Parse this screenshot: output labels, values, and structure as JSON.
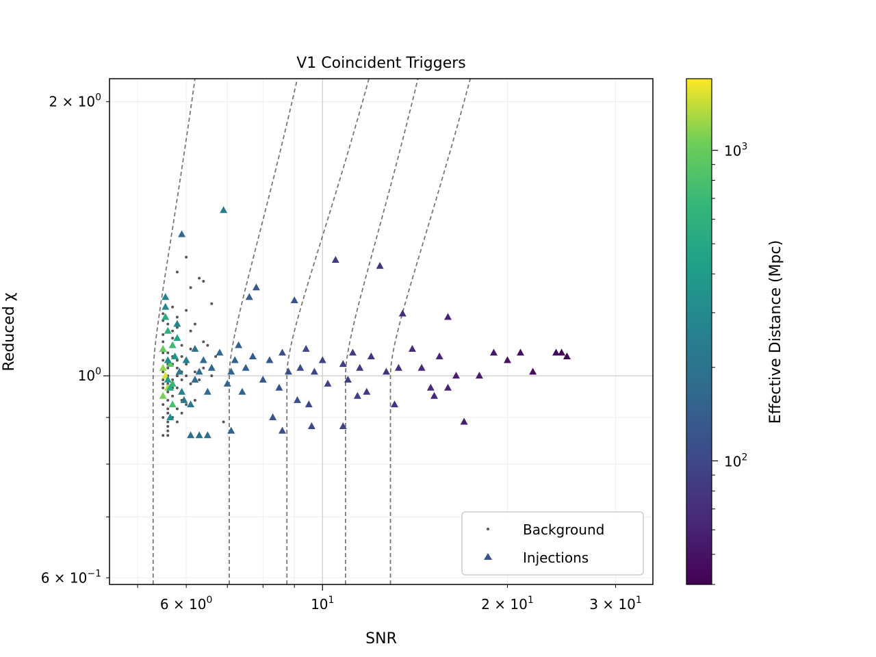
{
  "chart_data": {
    "type": "scatter",
    "title": "V1 Coincident Triggers",
    "xlabel": "SNR",
    "ylabel": "Reduced χ",
    "xscale": "log",
    "yscale": "log",
    "xlim": [
      4.5,
      34.5
    ],
    "ylim": [
      0.59,
      2.12
    ],
    "grid": true,
    "legend_position": "lower-right",
    "x_ticks": [
      {
        "value": 6,
        "label": "6 × 10^0"
      },
      {
        "value": 10,
        "label": "10^1"
      },
      {
        "value": 20,
        "label": "2 × 10^1"
      },
      {
        "value": 30,
        "label": "3 × 10^1"
      }
    ],
    "y_ticks": [
      {
        "value": 0.6,
        "label": "6 × 10^−1"
      },
      {
        "value": 1.0,
        "label": "10^0"
      },
      {
        "value": 2.0,
        "label": "2 × 10^0"
      }
    ],
    "colorbar": {
      "label": "Effective Distance (Mpc)",
      "scale": "log",
      "min": 40,
      "max": 1700,
      "colormap": "viridis",
      "ticks": [
        {
          "value": 100,
          "label": "10^2"
        },
        {
          "value": 1000,
          "label": "10^3"
        }
      ]
    },
    "contour_lines": {
      "style": "dashed",
      "color": "#777777",
      "vertical_snr": [
        5.3,
        7.05,
        8.75,
        10.9,
        12.9
      ],
      "top_snr": [
        6.2,
        9.1,
        11.9,
        14.3,
        17.4
      ]
    },
    "series": [
      {
        "name": "Background",
        "marker": "dot",
        "color": "#555555",
        "points": [
          [
            5.5,
            0.98
          ],
          [
            5.6,
            1.02
          ],
          [
            5.5,
            1.07
          ],
          [
            5.7,
            0.95
          ],
          [
            5.6,
            0.91
          ],
          [
            5.8,
            1.0
          ],
          [
            5.5,
            0.93
          ],
          [
            5.9,
            1.05
          ],
          [
            5.6,
            1.12
          ],
          [
            5.7,
            1.08
          ],
          [
            5.5,
            1.15
          ],
          [
            5.8,
            0.97
          ],
          [
            5.6,
            0.88
          ],
          [
            5.9,
            0.99
          ],
          [
            6.0,
            1.03
          ],
          [
            5.5,
            1.01
          ],
          [
            5.7,
            1.1
          ],
          [
            5.6,
            0.96
          ],
          [
            5.8,
            0.92
          ],
          [
            5.5,
            0.9
          ],
          [
            6.1,
            0.98
          ],
          [
            5.7,
            1.03
          ],
          [
            5.6,
            1.06
          ],
          [
            5.9,
            0.94
          ],
          [
            5.5,
            0.97
          ],
          [
            5.8,
            1.13
          ],
          [
            5.6,
            1.0
          ],
          [
            6.2,
            1.01
          ],
          [
            5.7,
            0.9
          ],
          [
            5.5,
            1.09
          ],
          [
            5.6,
            0.87
          ],
          [
            5.8,
            1.04
          ],
          [
            5.9,
            0.96
          ],
          [
            6.0,
            0.93
          ],
          [
            5.5,
            1.04
          ],
          [
            5.7,
            0.99
          ],
          [
            5.6,
            1.14
          ],
          [
            5.8,
            1.02
          ],
          [
            6.1,
            1.07
          ],
          [
            5.5,
            0.95
          ],
          [
            5.6,
            0.94
          ],
          [
            5.7,
            1.12
          ],
          [
            5.8,
            0.89
          ],
          [
            6.3,
            0.99
          ],
          [
            5.5,
            1.11
          ],
          [
            5.9,
            1.08
          ],
          [
            5.6,
            0.98
          ],
          [
            5.7,
            0.97
          ],
          [
            6.0,
            1.0
          ],
          [
            5.5,
            0.99
          ],
          [
            6.4,
            1.02
          ],
          [
            6.5,
            0.96
          ],
          [
            5.6,
            1.03
          ],
          [
            5.8,
            1.0
          ],
          [
            5.7,
            1.05
          ],
          [
            6.2,
            0.94
          ],
          [
            5.5,
            1.06
          ],
          [
            5.9,
            1.01
          ],
          [
            6.6,
            1.0
          ],
          [
            5.6,
            0.92
          ],
          [
            6.1,
            1.25
          ],
          [
            6.0,
            1.18
          ],
          [
            6.0,
            1.35
          ],
          [
            6.3,
            1.28
          ],
          [
            6.4,
            1.27
          ],
          [
            6.6,
            1.2
          ],
          [
            5.8,
            1.3
          ],
          [
            6.9,
            0.89
          ],
          [
            6.4,
            1.09
          ],
          [
            5.5,
            0.86
          ],
          [
            5.6,
            0.86
          ],
          [
            5.6,
            0.89
          ],
          [
            5.7,
            1.19
          ],
          [
            5.5,
            1.17
          ],
          [
            5.8,
            1.16
          ],
          [
            6.1,
            1.12
          ],
          [
            6.5,
            1.08
          ],
          [
            6.7,
            1.05
          ],
          [
            6.2,
            1.14
          ],
          [
            5.9,
            0.91
          ]
        ]
      },
      {
        "name": "Injections",
        "marker": "triangle",
        "points": [
          [
            5.55,
            1.0,
            1500
          ],
          [
            5.6,
            0.97,
            1300
          ],
          [
            5.5,
            0.95,
            1100
          ],
          [
            5.65,
            1.03,
            900
          ],
          [
            5.7,
            1.08,
            700
          ],
          [
            5.6,
            1.12,
            600
          ],
          [
            5.55,
            1.16,
            500
          ],
          [
            5.8,
            1.1,
            450
          ],
          [
            5.5,
            1.02,
            1200
          ],
          [
            5.7,
            0.93,
            800
          ],
          [
            5.6,
            0.99,
            400
          ],
          [
            5.75,
            1.05,
            350
          ],
          [
            5.65,
            0.9,
            300
          ],
          [
            5.9,
            0.96,
            250
          ],
          [
            5.55,
            1.19,
            300
          ],
          [
            5.8,
            1.14,
            280
          ],
          [
            5.5,
            1.07,
            1000
          ],
          [
            5.7,
            0.98,
            650
          ],
          [
            5.6,
            1.04,
            320
          ],
          [
            5.85,
            1.01,
            220
          ],
          [
            5.95,
            0.94,
            200
          ],
          [
            5.55,
            1.22,
            260
          ],
          [
            6.0,
            1.04,
            240
          ],
          [
            5.65,
            0.97,
            550
          ],
          [
            6.1,
            0.93,
            210
          ],
          [
            6.2,
            0.99,
            190
          ],
          [
            6.3,
            1.01,
            180
          ],
          [
            6.4,
            1.04,
            175
          ],
          [
            6.2,
            1.07,
            200
          ],
          [
            6.5,
            0.96,
            170
          ],
          [
            6.6,
            1.02,
            165
          ],
          [
            6.3,
            0.86,
            190
          ],
          [
            6.1,
            0.86,
            185
          ],
          [
            6.5,
            0.86,
            180
          ],
          [
            6.9,
            1.52,
            220
          ],
          [
            5.9,
            1.43,
            160
          ],
          [
            6.8,
            1.06,
            170
          ],
          [
            7.0,
            0.98,
            160
          ],
          [
            7.1,
            1.01,
            155
          ],
          [
            7.2,
            1.04,
            150
          ],
          [
            7.3,
            1.08,
            145
          ],
          [
            7.4,
            0.96,
            150
          ],
          [
            7.5,
            1.02,
            140
          ],
          [
            7.7,
            1.05,
            135
          ],
          [
            7.8,
            1.25,
            130
          ],
          [
            7.6,
            1.22,
            140
          ],
          [
            8.0,
            0.99,
            130
          ],
          [
            8.2,
            1.04,
            125
          ],
          [
            8.3,
            0.9,
            120
          ],
          [
            8.5,
            0.97,
            115
          ],
          [
            8.6,
            1.06,
            110
          ],
          [
            8.8,
            1.01,
            110
          ],
          [
            9.0,
            1.21,
            120
          ],
          [
            9.1,
            0.94,
            115
          ],
          [
            9.2,
            1.02,
            105
          ],
          [
            9.4,
            1.07,
            100
          ],
          [
            9.5,
            0.93,
            98
          ],
          [
            9.7,
            1.01,
            95
          ],
          [
            10.0,
            1.04,
            92
          ],
          [
            10.2,
            0.98,
            90
          ],
          [
            10.5,
            1.34,
            85
          ],
          [
            10.8,
            1.03,
            88
          ],
          [
            11.0,
            0.99,
            86
          ],
          [
            11.2,
            1.06,
            84
          ],
          [
            11.5,
            1.02,
            82
          ],
          [
            11.8,
            0.96,
            80
          ],
          [
            12.0,
            1.05,
            78
          ],
          [
            12.4,
            1.32,
            76
          ],
          [
            12.7,
            1.01,
            75
          ],
          [
            13.1,
            0.93,
            73
          ],
          [
            13.5,
            1.17,
            70
          ],
          [
            14.0,
            1.07,
            68
          ],
          [
            14.5,
            1.02,
            66
          ],
          [
            15.0,
            0.97,
            64
          ],
          [
            15.5,
            1.05,
            62
          ],
          [
            16.0,
            1.16,
            60
          ],
          [
            16.5,
            1.0,
            58
          ],
          [
            17.0,
            0.89,
            56
          ],
          [
            18.0,
            1.0,
            54
          ],
          [
            19.0,
            1.06,
            52
          ],
          [
            20.0,
            1.04,
            50
          ],
          [
            21.0,
            1.06,
            48
          ],
          [
            22.0,
            1.01,
            47
          ],
          [
            24.0,
            1.06,
            45
          ],
          [
            25.0,
            1.05,
            43
          ],
          [
            24.5,
            1.06,
            42
          ],
          [
            7.1,
            0.87,
            150
          ],
          [
            8.6,
            0.87,
            110
          ],
          [
            9.6,
            0.88,
            100
          ],
          [
            10.8,
            0.88,
            95
          ],
          [
            11.4,
            0.95,
            88
          ],
          [
            13.3,
            1.02,
            72
          ],
          [
            15.2,
            0.95,
            63
          ],
          [
            16.0,
            0.97,
            60
          ]
        ]
      }
    ]
  }
}
